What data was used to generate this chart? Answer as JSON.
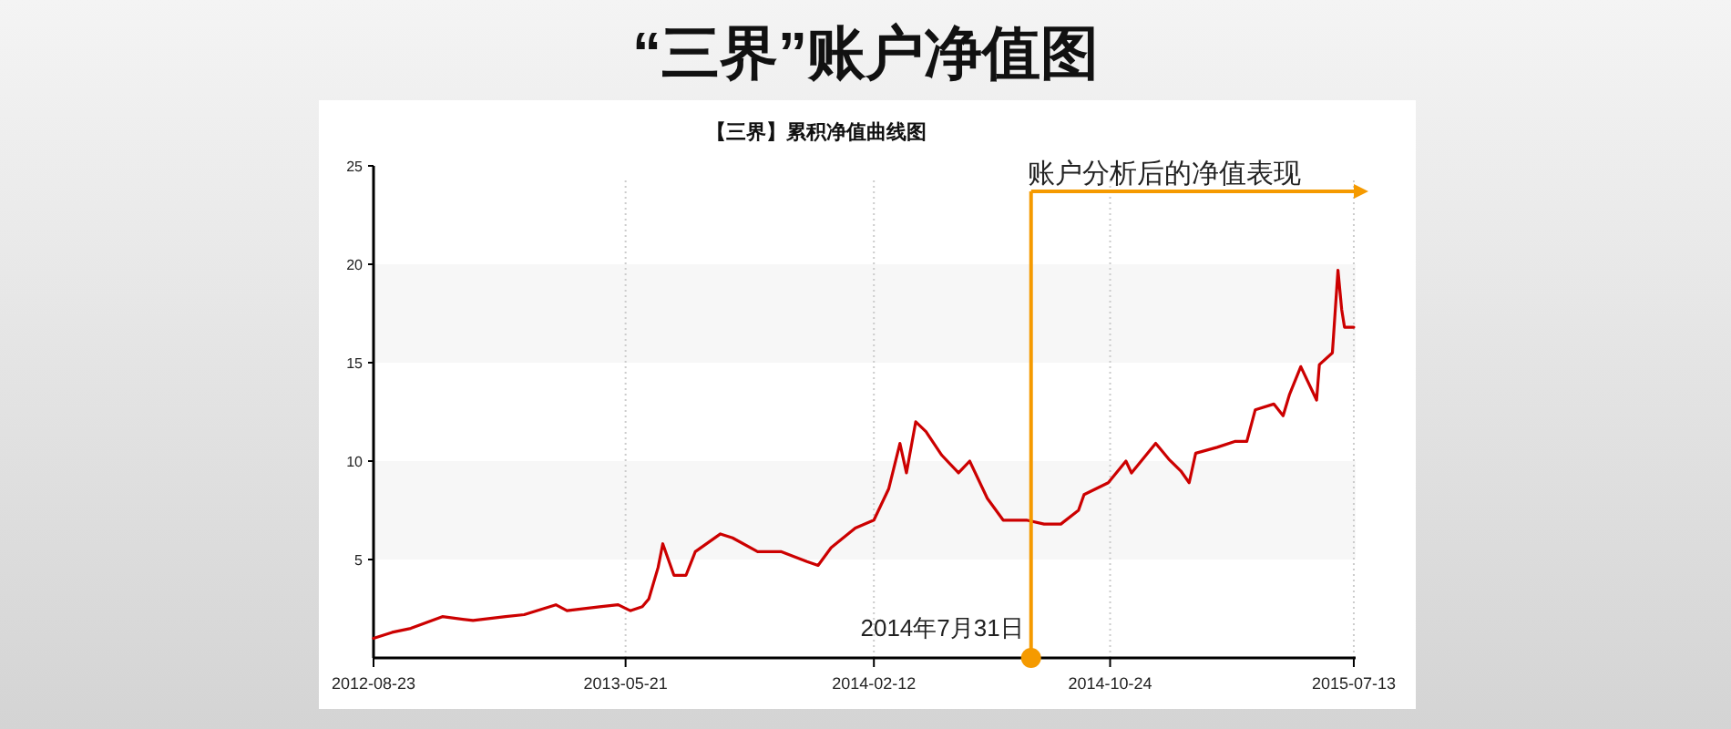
{
  "chart_data": {
    "type": "line",
    "title": "“三界”账户净值图",
    "subtitle": "【三界】累积净值曲线图",
    "x": [
      "2012-08-23",
      "2012-09-12",
      "2012-10-02",
      "2012-11-05",
      "2012-12-08",
      "2013-01-12",
      "2013-02-01",
      "2013-03-07",
      "2013-03-19",
      "2013-04-23",
      "2013-05-13",
      "2013-05-26",
      "2013-06-08",
      "2013-06-15",
      "2013-06-25",
      "2013-06-30",
      "2013-07-12",
      "2013-07-25",
      "2013-08-04",
      "2013-08-31",
      "2013-09-13",
      "2013-10-10",
      "2013-11-04",
      "2013-12-02",
      "2013-12-14",
      "2013-12-28",
      "2014-01-23",
      "2014-02-12",
      "2014-02-28",
      "2014-03-12",
      "2014-03-19",
      "2014-03-29",
      "2014-04-09",
      "2014-04-26",
      "2014-05-14",
      "2014-05-26",
      "2014-06-14",
      "2014-07-01",
      "2014-07-26",
      "2014-08-14",
      "2014-09-01",
      "2014-09-20",
      "2014-09-26",
      "2014-10-22",
      "2014-11-10",
      "2014-11-16",
      "2014-12-12",
      "2014-12-26",
      "2015-01-08",
      "2015-01-17",
      "2015-01-24",
      "2015-02-16",
      "2015-03-07",
      "2015-03-20",
      "2015-03-29",
      "2015-04-18",
      "2015-04-28",
      "2015-05-05",
      "2015-05-17",
      "2015-06-03",
      "2015-06-06",
      "2015-06-20",
      "2015-06-26",
      "2015-06-30",
      "2015-07-03",
      "2015-07-13"
    ],
    "series": [
      {
        "color": "#cc0000",
        "values": [
          1.0,
          1.3,
          1.5,
          2.1,
          1.9,
          2.1,
          2.2,
          2.7,
          2.4,
          2.6,
          2.7,
          2.4,
          2.6,
          3.0,
          4.6,
          5.8,
          4.2,
          4.2,
          5.4,
          6.3,
          6.1,
          5.4,
          5.4,
          4.9,
          4.7,
          5.6,
          6.6,
          7.0,
          8.6,
          10.9,
          9.4,
          12.0,
          11.5,
          10.3,
          9.4,
          10.0,
          8.1,
          7.0,
          7.0,
          6.8,
          6.8,
          7.5,
          8.3,
          8.9,
          10.0,
          9.4,
          10.9,
          10.1,
          9.5,
          8.9,
          10.4,
          10.7,
          11.0,
          11.0,
          12.6,
          12.9,
          12.3,
          13.4,
          14.8,
          13.1,
          14.9,
          15.5,
          19.7,
          17.7,
          16.8,
          16.8
        ]
      }
    ],
    "xlim": [
      "2012-08-23",
      "2015-07-15"
    ],
    "xticks": [
      {
        "value": "2012-08-23",
        "label": "2012-08-23"
      },
      {
        "value": "2013-05-21",
        "label": "2013-05-21"
      },
      {
        "value": "2014-02-12",
        "label": "2014-02-12"
      },
      {
        "value": "2014-10-24",
        "label": "2014-10-24"
      },
      {
        "value": "2015-07-13",
        "label": "2015-07-13"
      }
    ],
    "ylim": [
      0,
      25
    ],
    "yticks": [
      5,
      10,
      15,
      20,
      25
    ],
    "grid": "x",
    "bands": [
      {
        "axis": "y",
        "from": 5,
        "to": 10,
        "color": "#f7f7f7"
      },
      {
        "axis": "y",
        "from": 15,
        "to": 20,
        "color": "#f7f7f7"
      }
    ],
    "ref_lines": [
      {
        "axis": "x",
        "value": "2014-07-31",
        "label": "2014年7月31日",
        "color": "#f59a00"
      }
    ],
    "annotations": [
      "账户分析后的净值表现"
    ]
  }
}
